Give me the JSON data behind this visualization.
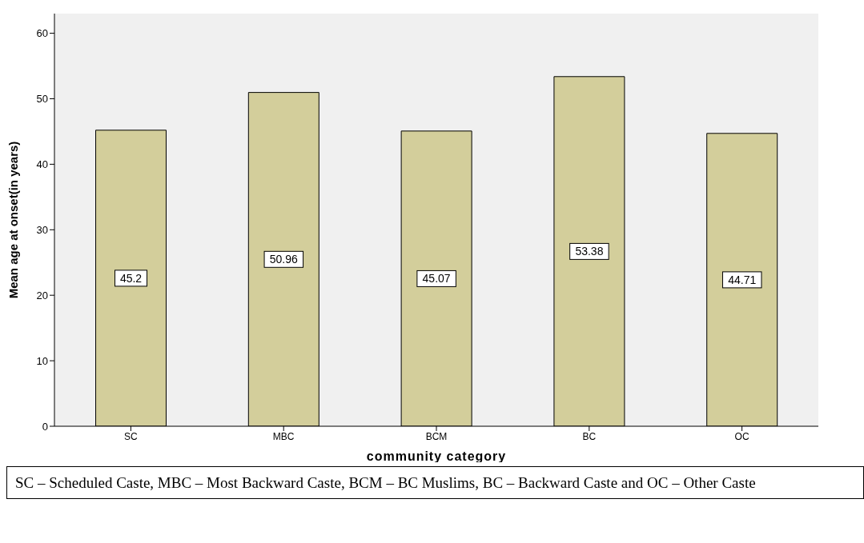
{
  "chart_data": {
    "type": "bar",
    "categories": [
      "SC",
      "MBC",
      "BCM",
      "BC",
      "OC"
    ],
    "values": [
      45.2,
      50.96,
      45.07,
      53.38,
      44.71
    ],
    "color": "#d3ce9b",
    "xlabel": "community category",
    "ylabel": "Mean age at onset(in years)",
    "ylim": [
      0,
      63
    ],
    "yticks": [
      0,
      10,
      20,
      30,
      40,
      50,
      60
    ],
    "grid": false,
    "data_labels": true,
    "annotations": [
      "SC – Scheduled Caste, MBC – Most Backward Caste, BCM – BC Muslims, BC – Backward Caste and OC – Other Caste"
    ]
  }
}
